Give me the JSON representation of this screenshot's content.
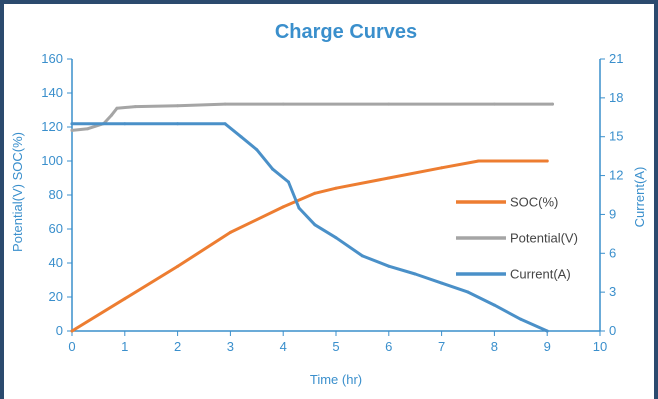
{
  "chart_data": {
    "type": "line",
    "title": "Charge Curves",
    "xlabel": "Time (hr)",
    "ylabel_left": "Potential(V)  SOC(%)",
    "ylabel_right": "Current(A)",
    "xlim": [
      0,
      10
    ],
    "ylim_left": [
      0,
      160
    ],
    "ylim_right": [
      0,
      21
    ],
    "x_ticks": [
      "0",
      "1",
      "2",
      "3",
      "4",
      "5",
      "6",
      "7",
      "8",
      "9",
      "10"
    ],
    "y_left_ticks": [
      "0",
      "20",
      "40",
      "60",
      "80",
      "100",
      "120",
      "140",
      "160"
    ],
    "y_right_ticks": [
      "0",
      "3",
      "6",
      "9",
      "12",
      "15",
      "18",
      "21"
    ],
    "grid": false,
    "legend_position": "right",
    "series": [
      {
        "name": "SOC(%)",
        "axis": "left",
        "color": "#ed7d31",
        "x": [
          0,
          1,
          2,
          3,
          4,
          4.6,
          5,
          6,
          7,
          7.7,
          9
        ],
        "y": [
          0,
          19,
          38,
          58,
          73,
          81,
          84,
          90,
          96,
          100,
          100
        ]
      },
      {
        "name": "Potential(V)",
        "axis": "left",
        "color": "#a5a5a5",
        "x": [
          0,
          0.3,
          0.6,
          0.75,
          0.85,
          1.2,
          2,
          2.9,
          4,
          6,
          8,
          9.1
        ],
        "y": [
          118,
          119,
          122,
          127,
          131,
          132,
          132.5,
          133.5,
          133.5,
          133.5,
          133.5,
          133.5
        ]
      },
      {
        "name": "Current(A)",
        "axis": "right",
        "color": "#4a90c8",
        "x": [
          0,
          1,
          2,
          2.9,
          3.2,
          3.5,
          3.8,
          4.1,
          4.3,
          4.6,
          5,
          5.5,
          6,
          6.5,
          7,
          7.5,
          8,
          8.5,
          9
        ],
        "y": [
          16,
          16,
          16,
          16,
          15,
          14,
          12.5,
          11.5,
          9.5,
          8.2,
          7.2,
          5.8,
          5.0,
          4.4,
          3.7,
          3.0,
          2.0,
          0.9,
          0
        ]
      }
    ]
  }
}
